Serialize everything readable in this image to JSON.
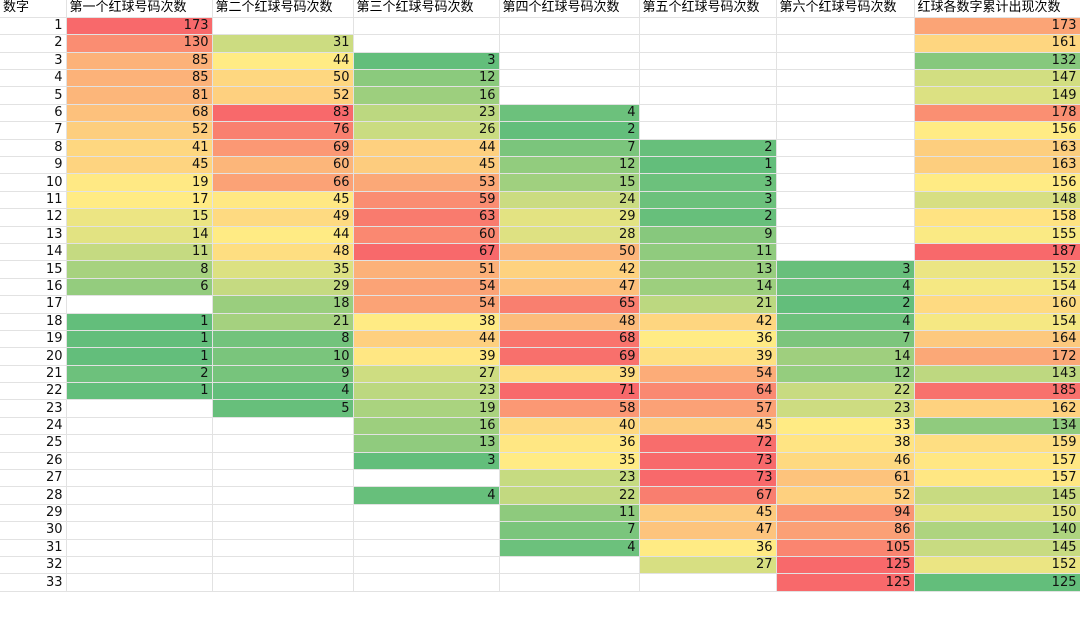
{
  "headers": [
    "数字",
    "第一个红球号码次数",
    "第二个红球号码次数",
    "第三个红球号码次数",
    "第四个红球号码次数",
    "第五个红球号码次数",
    "第六个红球号码次数",
    "红球各数字累计出现次数"
  ],
  "scale_colors": {
    "low": "#63be7b",
    "mid": "#ffeb84",
    "high": "#f8696b"
  },
  "rows": [
    {
      "n": "1",
      "v": [
        "173",
        "",
        "",
        "",
        "",
        "",
        "173"
      ]
    },
    {
      "n": "2",
      "v": [
        "130",
        "31",
        "",
        "",
        "",
        "",
        "161"
      ]
    },
    {
      "n": "3",
      "v": [
        "85",
        "44",
        "3",
        "",
        "",
        "",
        "132"
      ]
    },
    {
      "n": "4",
      "v": [
        "85",
        "50",
        "12",
        "",
        "",
        "",
        "147"
      ]
    },
    {
      "n": "5",
      "v": [
        "81",
        "52",
        "16",
        "",
        "",
        "",
        "149"
      ]
    },
    {
      "n": "6",
      "v": [
        "68",
        "83",
        "23",
        "4",
        "",
        "",
        "178"
      ]
    },
    {
      "n": "7",
      "v": [
        "52",
        "76",
        "26",
        "2",
        "",
        "",
        "156"
      ]
    },
    {
      "n": "8",
      "v": [
        "41",
        "69",
        "44",
        "7",
        "2",
        "",
        "163"
      ]
    },
    {
      "n": "9",
      "v": [
        "45",
        "60",
        "45",
        "12",
        "1",
        "",
        "163"
      ]
    },
    {
      "n": "10",
      "v": [
        "19",
        "66",
        "53",
        "15",
        "3",
        "",
        "156"
      ]
    },
    {
      "n": "11",
      "v": [
        "17",
        "45",
        "59",
        "24",
        "3",
        "",
        "148"
      ]
    },
    {
      "n": "12",
      "v": [
        "15",
        "49",
        "63",
        "29",
        "2",
        "",
        "158"
      ]
    },
    {
      "n": "13",
      "v": [
        "14",
        "44",
        "60",
        "28",
        "9",
        "",
        "155"
      ]
    },
    {
      "n": "14",
      "v": [
        "11",
        "48",
        "67",
        "50",
        "11",
        "",
        "187"
      ]
    },
    {
      "n": "15",
      "v": [
        "8",
        "35",
        "51",
        "42",
        "13",
        "3",
        "152"
      ]
    },
    {
      "n": "16",
      "v": [
        "6",
        "29",
        "54",
        "47",
        "14",
        "4",
        "154"
      ]
    },
    {
      "n": "17",
      "v": [
        "",
        "18",
        "54",
        "65",
        "21",
        "2",
        "160"
      ]
    },
    {
      "n": "18",
      "v": [
        "1",
        "21",
        "38",
        "48",
        "42",
        "4",
        "154"
      ]
    },
    {
      "n": "19",
      "v": [
        "1",
        "8",
        "44",
        "68",
        "36",
        "7",
        "164"
      ]
    },
    {
      "n": "20",
      "v": [
        "1",
        "10",
        "39",
        "69",
        "39",
        "14",
        "172"
      ]
    },
    {
      "n": "21",
      "v": [
        "2",
        "9",
        "27",
        "39",
        "54",
        "12",
        "143"
      ]
    },
    {
      "n": "22",
      "v": [
        "1",
        "4",
        "23",
        "71",
        "64",
        "22",
        "185"
      ]
    },
    {
      "n": "23",
      "v": [
        "",
        "5",
        "19",
        "58",
        "57",
        "23",
        "162"
      ]
    },
    {
      "n": "24",
      "v": [
        "",
        "",
        "16",
        "40",
        "45",
        "33",
        "134"
      ]
    },
    {
      "n": "25",
      "v": [
        "",
        "",
        "13",
        "36",
        "72",
        "38",
        "159"
      ]
    },
    {
      "n": "26",
      "v": [
        "",
        "",
        "3",
        "35",
        "73",
        "46",
        "157"
      ]
    },
    {
      "n": "27",
      "v": [
        "",
        "",
        "",
        "23",
        "73",
        "61",
        "157"
      ]
    },
    {
      "n": "28",
      "v": [
        "",
        "",
        "4",
        "22",
        "67",
        "52",
        "145"
      ]
    },
    {
      "n": "29",
      "v": [
        "",
        "",
        "",
        "11",
        "45",
        "94",
        "150"
      ]
    },
    {
      "n": "30",
      "v": [
        "",
        "",
        "",
        "7",
        "47",
        "86",
        "140"
      ]
    },
    {
      "n": "31",
      "v": [
        "",
        "",
        "",
        "4",
        "36",
        "105",
        "145"
      ]
    },
    {
      "n": "32",
      "v": [
        "",
        "",
        "",
        "",
        "27",
        "125",
        "152"
      ]
    },
    {
      "n": "33",
      "v": [
        "",
        "",
        "",
        "",
        "",
        "125",
        "125"
      ]
    }
  ]
}
